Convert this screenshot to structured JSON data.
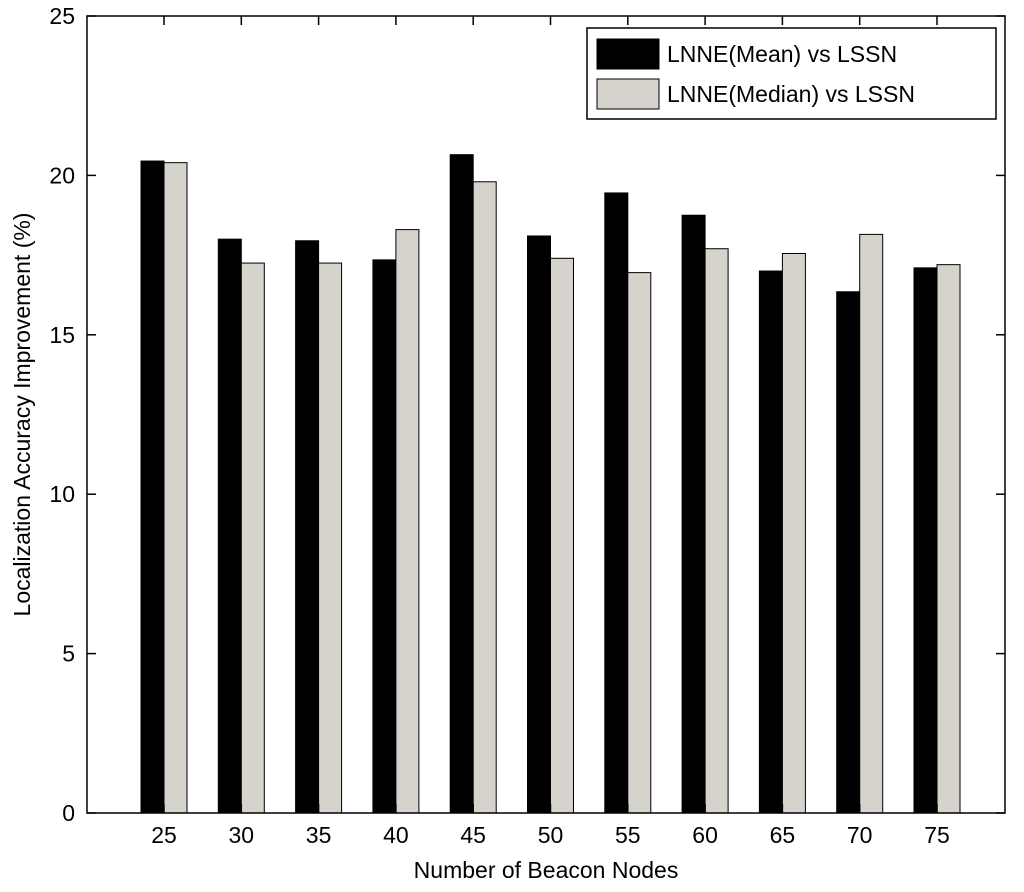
{
  "chart_data": {
    "type": "bar",
    "xlabel": "Number of Beacon Nodes",
    "ylabel": "Localization Accuracy Improvement (%)",
    "categories": [
      "25",
      "30",
      "35",
      "40",
      "45",
      "50",
      "55",
      "60",
      "65",
      "70",
      "75"
    ],
    "ylim": [
      0,
      25
    ],
    "yticks": [
      0,
      5,
      10,
      15,
      20,
      25
    ],
    "series": [
      {
        "name": "LNNE(Mean) vs LSSN",
        "color": "#000000",
        "values": [
          20.45,
          18.0,
          17.95,
          17.35,
          20.65,
          18.1,
          19.45,
          18.75,
          17.0,
          16.35,
          17.1
        ]
      },
      {
        "name": "LNNE(Median) vs LSSN",
        "color": "#d6d3cc",
        "values": [
          20.4,
          17.25,
          17.25,
          18.3,
          19.8,
          17.4,
          16.95,
          17.7,
          17.55,
          18.15,
          17.2
        ]
      }
    ],
    "legend_position": "top-right",
    "grid": false
  }
}
